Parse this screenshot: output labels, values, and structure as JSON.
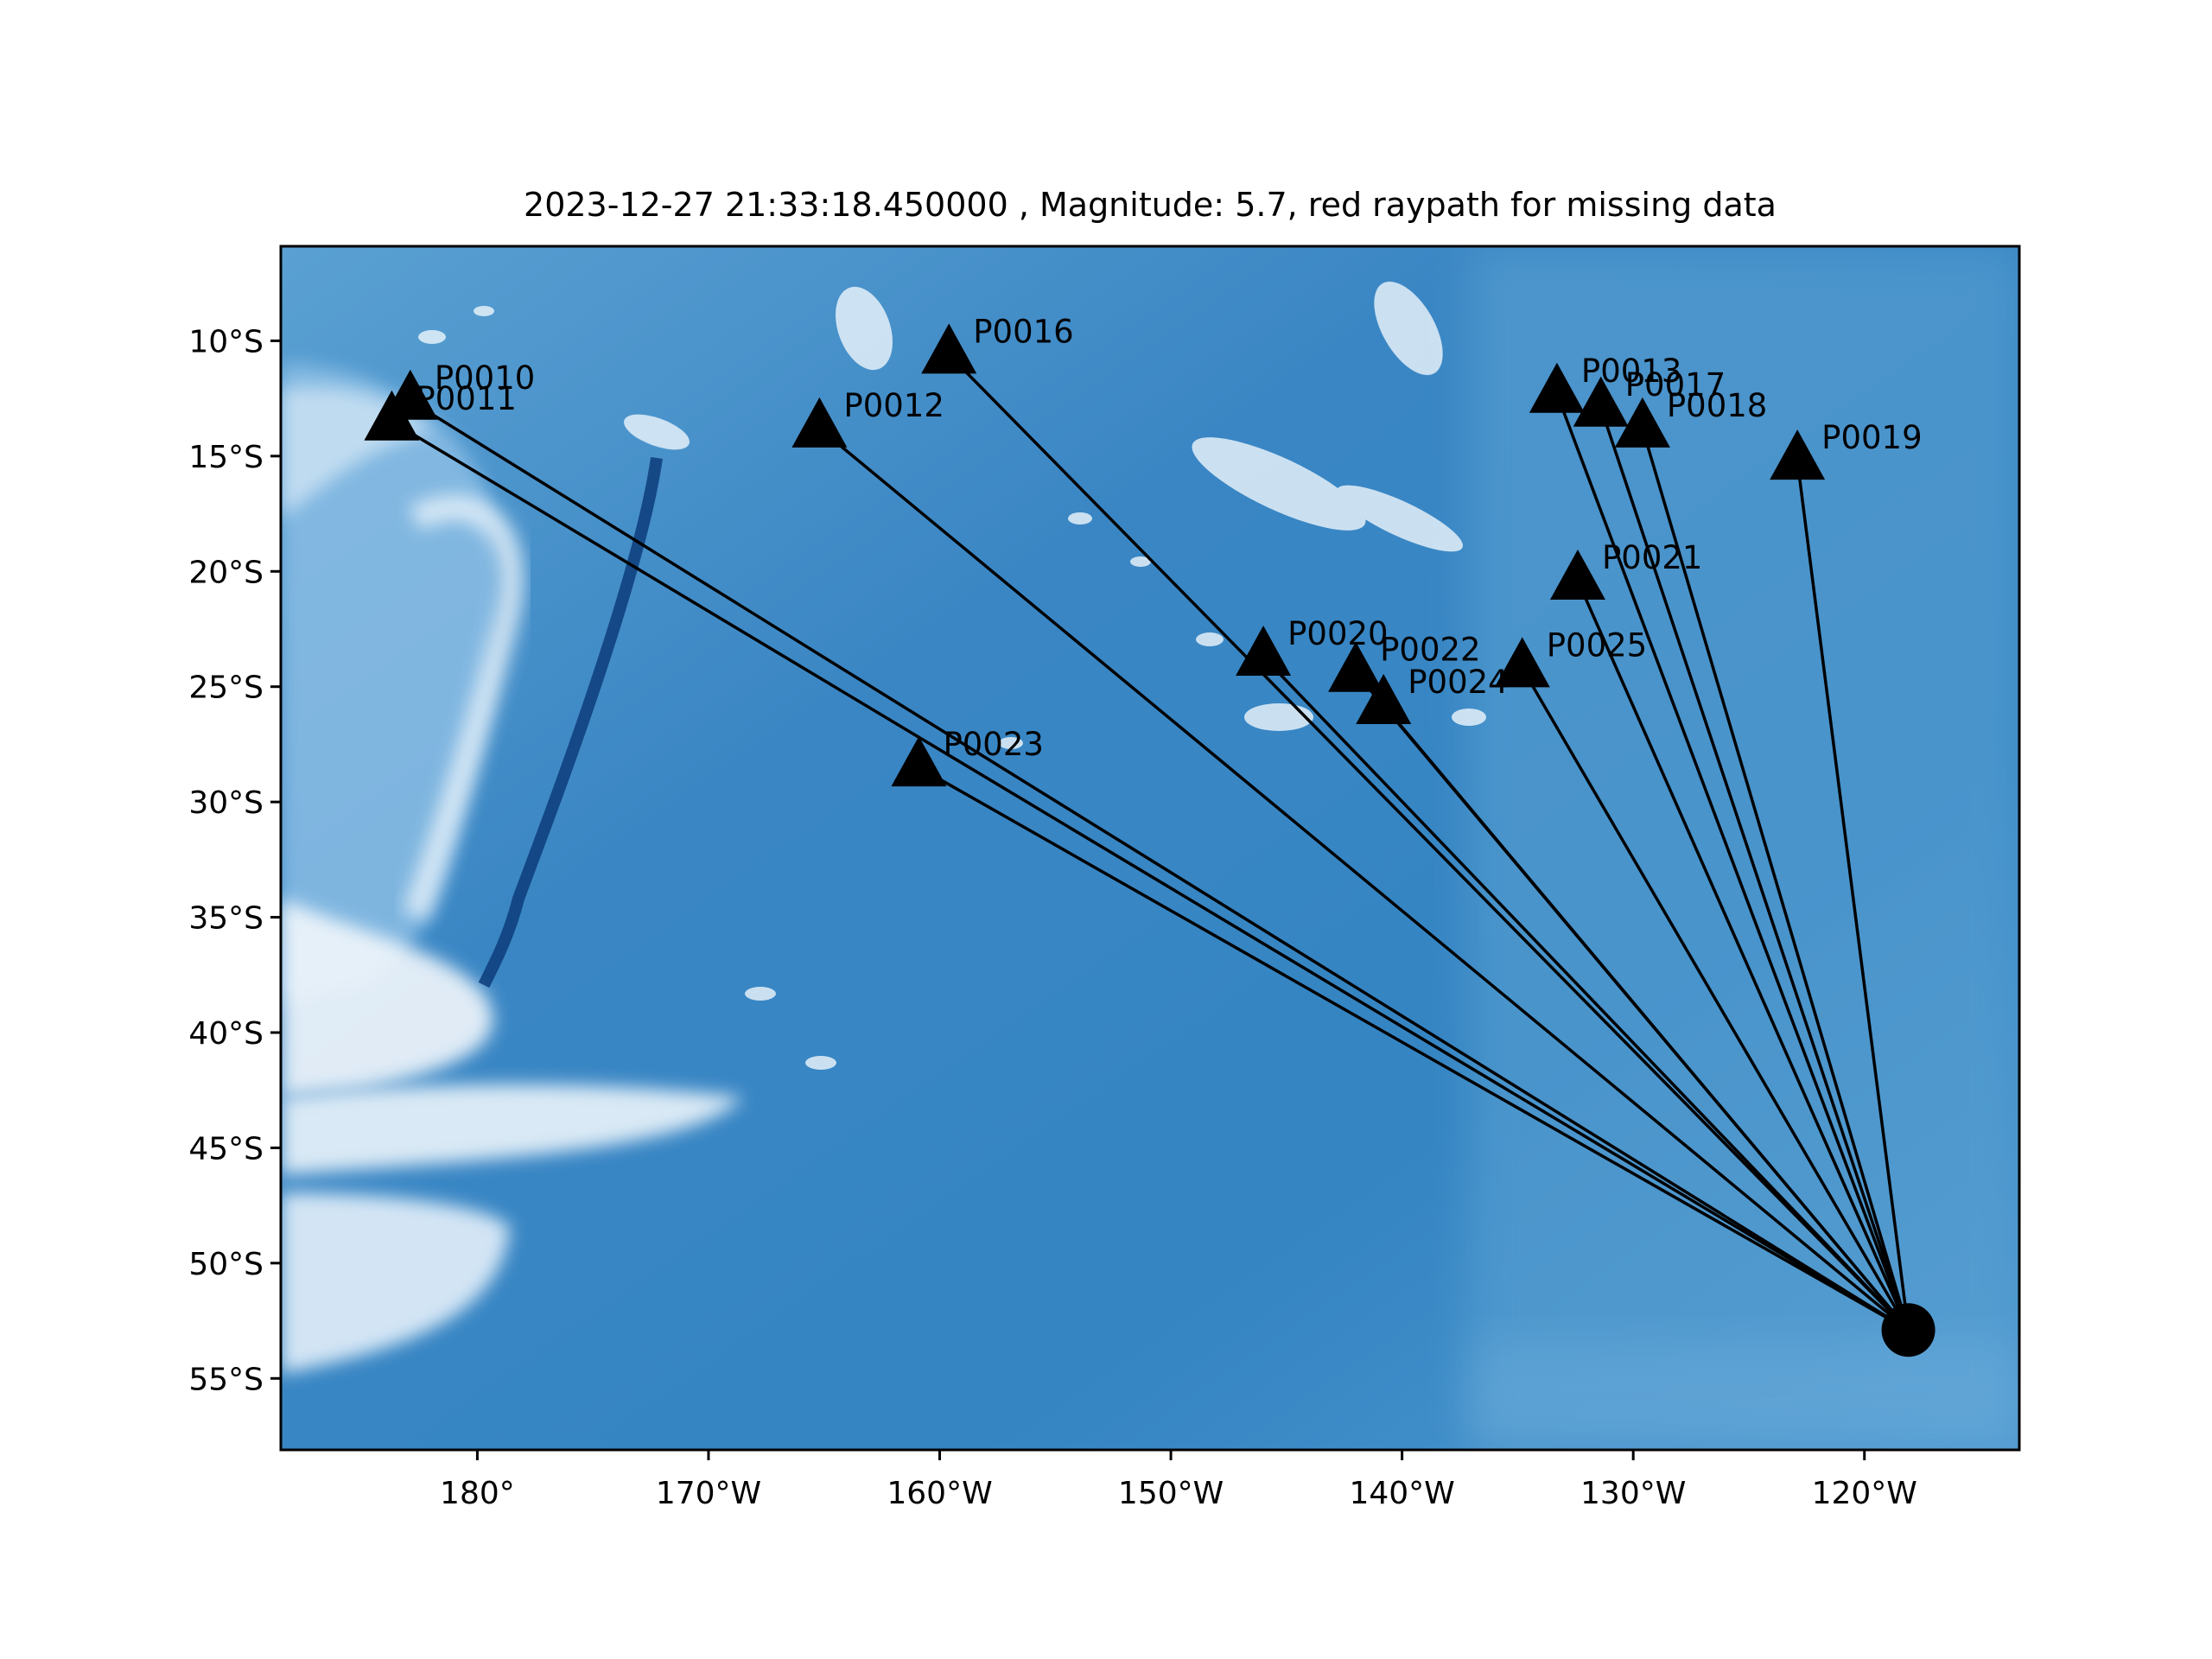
{
  "title": "2023-12-27 21:33:18.450000 , Magnitude: 5.7, red raypath for missing data",
  "map": {
    "lon_range": [
      -188.5,
      -113.3
    ],
    "lat_range": [
      -58.1,
      -5.9
    ],
    "x_ticks": [
      {
        "lon": -180,
        "label": "180°"
      },
      {
        "lon": -170,
        "label": "170°W"
      },
      {
        "lon": -160,
        "label": "160°W"
      },
      {
        "lon": -150,
        "label": "150°W"
      },
      {
        "lon": -140,
        "label": "140°W"
      },
      {
        "lon": -130,
        "label": "130°W"
      },
      {
        "lon": -120,
        "label": "120°W"
      }
    ],
    "y_ticks": [
      {
        "lat": -10,
        "label": "10°S"
      },
      {
        "lat": -15,
        "label": "15°S"
      },
      {
        "lat": -20,
        "label": "20°S"
      },
      {
        "lat": -25,
        "label": "25°S"
      },
      {
        "lat": -30,
        "label": "30°S"
      },
      {
        "lat": -35,
        "label": "35°S"
      },
      {
        "lat": -40,
        "label": "40°S"
      },
      {
        "lat": -45,
        "label": "45°S"
      },
      {
        "lat": -50,
        "label": "50°S"
      },
      {
        "lat": -55,
        "label": "55°S"
      }
    ],
    "colors": {
      "ocean_deep": "#2f7fc0",
      "ocean_mid": "#4a93cc",
      "shallow": "#d6e8f5",
      "trench": "#0d3c7a",
      "raypath": "#000000",
      "marker": "#000000"
    }
  },
  "chart_data": {
    "type": "map",
    "event": {
      "lon": -118.1,
      "lat": -52.9,
      "marker": "circle"
    },
    "stations": [
      {
        "name": "P0010",
        "lon": -182.9,
        "lat": -12.6
      },
      {
        "name": "P0011",
        "lon": -183.7,
        "lat": -13.5
      },
      {
        "name": "P0012",
        "lon": -165.2,
        "lat": -13.8
      },
      {
        "name": "P0016",
        "lon": -159.6,
        "lat": -10.6
      },
      {
        "name": "P0013",
        "lon": -133.3,
        "lat": -12.3
      },
      {
        "name": "P0017",
        "lon": -131.4,
        "lat": -12.9
      },
      {
        "name": "P0018",
        "lon": -129.6,
        "lat": -13.8
      },
      {
        "name": "P0019",
        "lon": -122.9,
        "lat": -15.2
      },
      {
        "name": "P0021",
        "lon": -132.4,
        "lat": -20.4
      },
      {
        "name": "P0020",
        "lon": -146.0,
        "lat": -23.7
      },
      {
        "name": "P0022",
        "lon": -142.0,
        "lat": -24.4
      },
      {
        "name": "P0024",
        "lon": -140.8,
        "lat": -25.8
      },
      {
        "name": "P0025",
        "lon": -134.8,
        "lat": -24.2
      },
      {
        "name": "P0023",
        "lon": -160.9,
        "lat": -28.5
      }
    ],
    "raypath_color": "black"
  }
}
